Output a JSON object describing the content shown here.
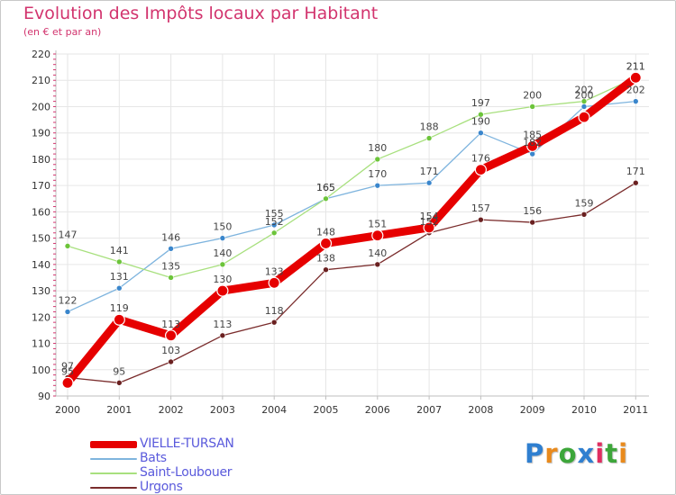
{
  "header": {
    "title": "Evolution des Impôts locaux par Habitant",
    "subtitle": "(en € et par an)"
  },
  "colors": {
    "title": "#d2346e",
    "legend_text": "#5a5adc",
    "grid": "#e6e6e6",
    "axis": "#bfbfbf",
    "red_ticks": "#d2346e"
  },
  "logo": {
    "text": "Proxiti",
    "letter_colors": [
      "#2f7fd0",
      "#e98a1c",
      "#3da63a",
      "#2f7fd0",
      "#e02e60",
      "#3da63a",
      "#e98a1c"
    ]
  },
  "chart_data": {
    "type": "line",
    "title": "Evolution des Impôts locaux par Habitant",
    "subtitle": "(en € et par an)",
    "xlabel": "",
    "ylabel": "",
    "x": [
      "2000",
      "2001",
      "2002",
      "2003",
      "2004",
      "2005",
      "2006",
      "2007",
      "2008",
      "2009",
      "2010",
      "2011"
    ],
    "ylim": [
      90,
      220
    ],
    "yticks": [
      90,
      100,
      110,
      120,
      130,
      140,
      150,
      160,
      170,
      180,
      190,
      200,
      210,
      220
    ],
    "grid": true,
    "legend_position": "bottom-left",
    "series": [
      {
        "name": "VIELLE-TURSAN",
        "values": [
          95,
          119,
          113,
          130,
          133,
          148,
          151,
          154,
          176,
          185,
          196,
          211
        ],
        "labels": [
          "95",
          "119",
          "113",
          "130",
          "133",
          "148",
          "151",
          "154",
          "176",
          "185",
          "",
          "211"
        ],
        "color": "#e60000",
        "marker_color": "#e60000"
      },
      {
        "name": "Bats",
        "values": [
          122,
          131,
          146,
          150,
          155,
          165,
          170,
          171,
          190,
          182,
          200,
          202
        ],
        "labels": [
          "122",
          "131",
          "146",
          "150",
          "155",
          "165",
          "170",
          "171",
          "190",
          "182",
          "200",
          "202"
        ],
        "color": "#7eb4de",
        "marker_color": "#3a86cc"
      },
      {
        "name": "Saint-Loubouer",
        "values": [
          147,
          141,
          135,
          140,
          152,
          165,
          180,
          188,
          197,
          200,
          202,
          211
        ],
        "labels": [
          "147",
          "141",
          "135",
          "140",
          "152",
          "165",
          "180",
          "188",
          "197",
          "200",
          "202",
          "211"
        ],
        "color": "#a8e07e",
        "marker_color": "#6cc43a"
      },
      {
        "name": "Urgons",
        "values": [
          97,
          95,
          103,
          113,
          118,
          138,
          140,
          152,
          157,
          156,
          159,
          171
        ],
        "labels": [
          "97",
          "95",
          "103",
          "113",
          "118",
          "138",
          "140",
          "152",
          "157",
          "156",
          "159",
          "171"
        ],
        "color": "#7a2c2c",
        "marker_color": "#6a2020"
      }
    ]
  }
}
